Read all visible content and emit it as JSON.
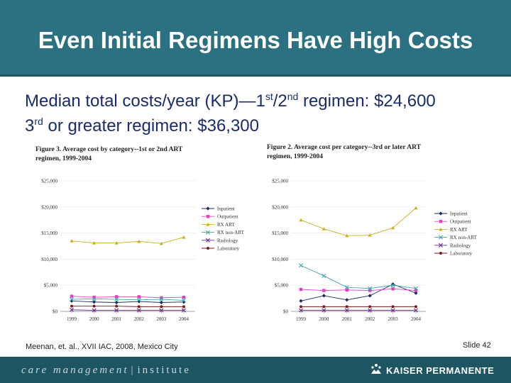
{
  "slide": {
    "title": "Even Initial Regimens Have High Costs",
    "line1": {
      "pre": "Median total costs/year (KP)—1",
      "sup1": "st",
      "mid": "/2",
      "sup2": "nd",
      "post": " regimen: $24,600"
    },
    "line2": {
      "pre": "3",
      "sup": "rd",
      "post": " or greater regimen: $36,300"
    },
    "citation": "Meenan, et. al., XVII IAC, 2008, Mexico City",
    "slide_number": "Slide 42",
    "footer_left": {
      "part1": "care management",
      "part2": "institute"
    },
    "footer_right": "KAISER PERMANENTE",
    "colors": {
      "title_bg": "#2b7181",
      "footer_bg": "#1d5563",
      "text": "#1a2b6c"
    }
  },
  "chart_data": [
    {
      "type": "line",
      "title_line1": "Figure 3. Average cost by category--1st or 2nd ART",
      "title_line2": "regimen, 1999-2004",
      "categories": [
        "1999",
        "2000",
        "2001",
        "2002",
        "2003",
        "2004"
      ],
      "y_ticks": [
        "$0",
        "$5,000",
        "$10,000",
        "$15,000",
        "$20,000",
        "$25,000"
      ],
      "ylim": [
        0,
        25000
      ],
      "legend_position": "right",
      "series": [
        {
          "name": "Inpatient",
          "marker": "diamond",
          "color": "#1b2a66",
          "values": [
            2000,
            1800,
            1700,
            1900,
            1700,
            1800
          ]
        },
        {
          "name": "Outpatient",
          "marker": "square",
          "color": "#e040c8",
          "values": [
            2900,
            2700,
            2800,
            2800,
            2600,
            2700
          ]
        },
        {
          "name": "RX ART",
          "marker": "triangle",
          "color": "#c8b020",
          "values": [
            13500,
            13100,
            13100,
            13400,
            13000,
            14200
          ]
        },
        {
          "name": "RX non-ART",
          "marker": "x",
          "color": "#40a8a8",
          "values": [
            2300,
            2400,
            2300,
            2200,
            2300,
            2100
          ]
        },
        {
          "name": "Radiology",
          "marker": "x",
          "color": "#6a2a90",
          "values": [
            300,
            200,
            200,
            200,
            200,
            200
          ]
        },
        {
          "name": "Laboratory",
          "marker": "circle",
          "color": "#7a1a1a",
          "values": [
            1000,
            1000,
            1000,
            900,
            900,
            900
          ]
        }
      ]
    },
    {
      "type": "line",
      "title_line1": "Figure 2. Average cost per category--3rd or later ART",
      "title_line2": "regimen, 1999-2004",
      "categories": [
        "1999",
        "2000",
        "2001",
        "2002",
        "2003",
        "2004"
      ],
      "y_ticks": [
        "$0",
        "$5,000",
        "$10,000",
        "$15,000",
        "$20,000",
        "$25,000"
      ],
      "ylim": [
        0,
        25000
      ],
      "legend_position": "right",
      "series": [
        {
          "name": "Inpatient",
          "marker": "diamond",
          "color": "#1b2a66",
          "values": [
            2000,
            3000,
            2200,
            3000,
            5200,
            3500
          ]
        },
        {
          "name": "Outpatient",
          "marker": "square",
          "color": "#e040c8",
          "values": [
            4200,
            4000,
            4100,
            4000,
            4300,
            4000
          ]
        },
        {
          "name": "RX ART",
          "marker": "triangle",
          "color": "#c8b020",
          "values": [
            17500,
            15800,
            14500,
            14600,
            16000,
            19800
          ]
        },
        {
          "name": "RX non-ART",
          "marker": "x",
          "color": "#40a8a8",
          "values": [
            8800,
            6800,
            4600,
            4400,
            5000,
            4400
          ]
        },
        {
          "name": "Radiology",
          "marker": "x",
          "color": "#6a2a90",
          "values": [
            200,
            200,
            200,
            200,
            200,
            200
          ]
        },
        {
          "name": "Laboratory",
          "marker": "circle",
          "color": "#7a1a1a",
          "values": [
            900,
            900,
            900,
            900,
            900,
            900
          ]
        }
      ]
    }
  ]
}
